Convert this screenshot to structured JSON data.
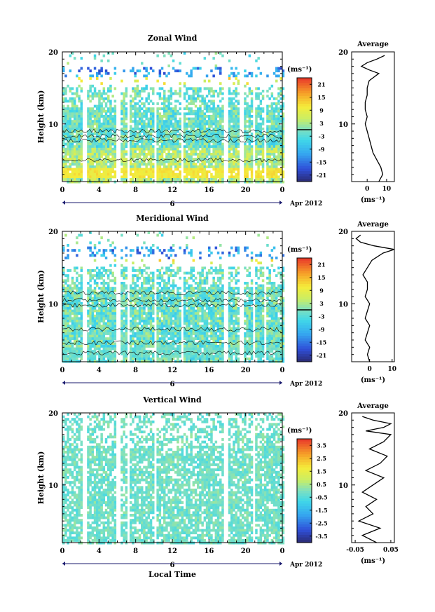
{
  "figure": {
    "bottom_xlabel": "Local Time",
    "date_label": "Apr 2012",
    "day_label": "6",
    "colorbar_units": "(ms⁻¹)",
    "profile_units": "(ms⁻¹)",
    "profile_title": "Average"
  },
  "chart_data": [
    {
      "type": "heatmap",
      "title": "Zonal Wind",
      "xlabel": "",
      "ylabel": "Height (km)",
      "x_ticks": [
        "0",
        "4",
        "8",
        "12",
        "16",
        "20",
        "0"
      ],
      "y_ticks": [
        "10",
        "20"
      ],
      "xlim": [
        0,
        24
      ],
      "ylim": [
        2,
        20
      ],
      "colorbar": {
        "ticks": [
          "21",
          "15",
          "9",
          "3",
          "-3",
          "-9",
          "-15",
          "-21"
        ],
        "range": [
          -24,
          24
        ],
        "contour_level": 0
      },
      "gaps_hours": [
        [
          2.0,
          2.5
        ],
        [
          5.8,
          6.2
        ],
        [
          7.0,
          7.3
        ],
        [
          9.8,
          10.2
        ],
        [
          12.8,
          13.2
        ],
        [
          17.5,
          17.9
        ],
        [
          19.3,
          19.6
        ],
        [
          20.7,
          21.0
        ],
        [
          21.8,
          22.1
        ]
      ],
      "profile": {
        "x_ticks": [
          "0",
          "10"
        ],
        "xlim": [
          -8,
          14
        ],
        "y_ticks": [
          "10",
          "20"
        ],
        "heights_km": [
          2,
          3,
          4,
          5,
          6,
          7,
          8,
          9,
          10,
          11,
          12,
          13,
          14,
          15,
          16,
          17,
          17.5,
          18,
          18.5,
          19,
          19.5
        ],
        "values": [
          6,
          8,
          7,
          5,
          3,
          2,
          1,
          0,
          -1,
          0,
          -1,
          -1,
          0,
          0,
          1,
          6,
          1,
          -3,
          0,
          5,
          9
        ]
      }
    },
    {
      "type": "heatmap",
      "title": "Meridional Wind",
      "xlabel": "",
      "ylabel": "Height (km)",
      "x_ticks": [
        "0",
        "4",
        "8",
        "12",
        "16",
        "20",
        "0"
      ],
      "y_ticks": [
        "10",
        "20"
      ],
      "xlim": [
        0,
        24
      ],
      "ylim": [
        2,
        20
      ],
      "colorbar": {
        "ticks": [
          "21",
          "15",
          "9",
          "3",
          "-3",
          "-9",
          "-15",
          "-21"
        ],
        "range": [
          -24,
          24
        ],
        "contour_level": 0
      },
      "gaps_hours": [
        [
          2.0,
          2.5
        ],
        [
          5.8,
          6.2
        ],
        [
          7.0,
          7.3
        ],
        [
          9.8,
          10.2
        ],
        [
          12.8,
          13.2
        ],
        [
          17.5,
          17.9
        ],
        [
          19.3,
          19.6
        ],
        [
          20.7,
          21.0
        ],
        [
          21.8,
          22.1
        ]
      ],
      "profile": {
        "x_ticks": [
          "0",
          "10"
        ],
        "xlim": [
          -8,
          11
        ],
        "y_ticks": [
          "10",
          "20"
        ],
        "heights_km": [
          2,
          3,
          4,
          5,
          6,
          7,
          8,
          9,
          10,
          11,
          12,
          13,
          14,
          15,
          16,
          17,
          17.5,
          18,
          18.5,
          19,
          19.5
        ],
        "values": [
          0,
          -1,
          0,
          -2,
          -1,
          0,
          -2,
          -1,
          0,
          -2,
          -1,
          -1,
          -3,
          -1,
          1,
          6,
          11,
          2,
          -4,
          -6,
          -4
        ]
      }
    },
    {
      "type": "heatmap",
      "title": "Vertical Wind",
      "xlabel": "Local Time",
      "ylabel": "Height (km)",
      "x_ticks": [
        "0",
        "4",
        "8",
        "12",
        "16",
        "20",
        "0"
      ],
      "y_ticks": [
        "10",
        "20"
      ],
      "xlim": [
        0,
        24
      ],
      "ylim": [
        2,
        20
      ],
      "colorbar": {
        "ticks": [
          "3.5",
          "2.5",
          "1.5",
          "0.5",
          "-0.5",
          "-1.5",
          "-2.5",
          "-3.5"
        ],
        "range": [
          -4,
          4
        ]
      },
      "gaps_hours": [
        [
          2.0,
          2.5
        ],
        [
          5.8,
          6.2
        ],
        [
          7.0,
          7.3
        ],
        [
          9.8,
          10.2
        ],
        [
          17.5,
          17.9
        ],
        [
          20.7,
          21.0
        ]
      ],
      "profile": {
        "x_ticks": [
          "-0.05",
          "0.05"
        ],
        "xlim": [
          -0.06,
          0.06
        ],
        "y_ticks": [
          "10",
          "20"
        ],
        "heights_km": [
          2,
          3,
          4,
          5,
          6,
          7,
          8,
          9,
          10,
          11,
          12,
          13,
          14,
          15,
          16,
          17,
          17.5,
          18,
          18.5,
          19,
          19.5
        ],
        "values": [
          0.01,
          -0.03,
          0.02,
          -0.04,
          0.0,
          -0.02,
          0.01,
          -0.03,
          0.0,
          0.03,
          -0.02,
          0.02,
          0.04,
          -0.01,
          0.03,
          0.05,
          -0.02,
          0.03,
          0.05,
          0.0,
          -0.03
        ]
      }
    }
  ]
}
